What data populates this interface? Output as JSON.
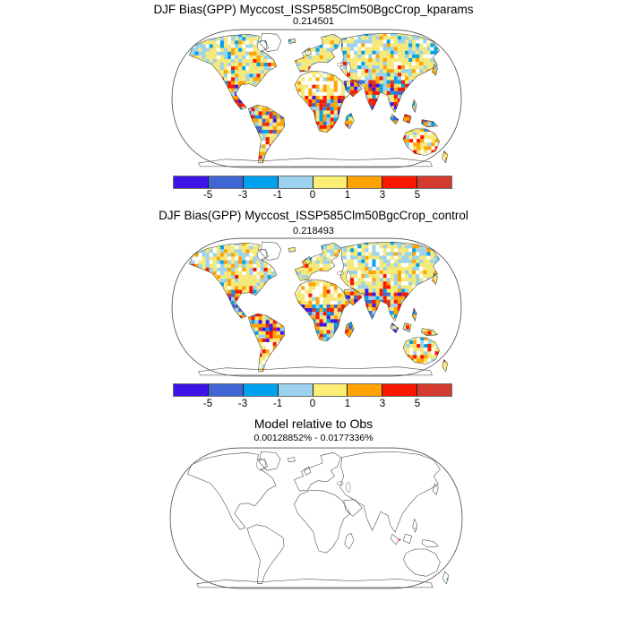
{
  "figure": {
    "background": "#ffffff"
  },
  "panels": [
    {
      "title": "DJF Bias(GPP) Myccost_ISSP585Clm50BgcCrop_kparams",
      "subtitle": "0.214501",
      "map_type": "bias"
    },
    {
      "title": "DJF Bias(GPP) Myccost_ISSP585Clm50BgcCrop_control",
      "subtitle": "0.218493",
      "map_type": "bias"
    },
    {
      "title": "Model relative to Obs",
      "subtitle": "0.00128852% - 0.0177336%",
      "map_type": "outline"
    }
  ],
  "colorbar": {
    "ticks": [
      "-5",
      "-3",
      "-1",
      "0",
      "1",
      "3",
      "5"
    ],
    "colors": [
      "#3c14e8",
      "#3f66d4",
      "#00a2f0",
      "#9cd2ee",
      "#fcee74",
      "#ffa203",
      "#f81700",
      "#d23b2e"
    ],
    "outer_border": "#6e6e6e",
    "divider": "#1c1c1c"
  },
  "map_colors": {
    "land_base": "#f6e97b",
    "no_data": "#ffffff",
    "ocean": "#ffffff",
    "coastline": "#3a3a32",
    "ice_fill": "#ffffff"
  },
  "chart_data": [
    {
      "type": "heatmap",
      "subtype": "global-bias-map",
      "projection": "robinson",
      "title": "DJF Bias(GPP) Myccost_ISSP585Clm50BgcCrop_kparams",
      "stat_value": 0.214501,
      "colorbar_ticks": [
        -5,
        -3,
        -1,
        0,
        1,
        3,
        5
      ],
      "n_color_bins": 8,
      "legend_position": "below-map",
      "visible_pattern": "boreal/temperate land mostly weak positive bias (pale yellow) with scattered light-blue negatives across Canada, N Europe and Siberia; tropics (Amazon, central/southern Africa, Madagascar, SE Asia islands, coastal Australia) show strong mixed orange/red positives and blue negatives; Sahara, Arabia interior, Greenland and Antarctica blank (no data)"
    },
    {
      "type": "heatmap",
      "subtype": "global-bias-map",
      "projection": "robinson",
      "title": "DJF Bias(GPP) Myccost_ISSP585Clm50BgcCrop_control",
      "stat_value": 0.218493,
      "colorbar_ticks": [
        -5,
        -3,
        -1,
        0,
        1,
        3,
        5
      ],
      "n_color_bins": 8,
      "legend_position": "below-map",
      "visible_pattern": "nearly identical distribution to kparams panel: yellow-dominated northern continents with light-blue patches, strong orange/red and blue speckling in tropics, blank Sahara/Greenland/Antarctica"
    },
    {
      "type": "map",
      "subtype": "coastline-outline",
      "projection": "robinson",
      "title": "Model relative to Obs",
      "stat_value": "0.00128852% - 0.0177336%",
      "visible_pattern": "coastline outlines only on white, tiny red marks near Borneo/Sulawesi and a tiny green mark near New Zealand"
    }
  ]
}
